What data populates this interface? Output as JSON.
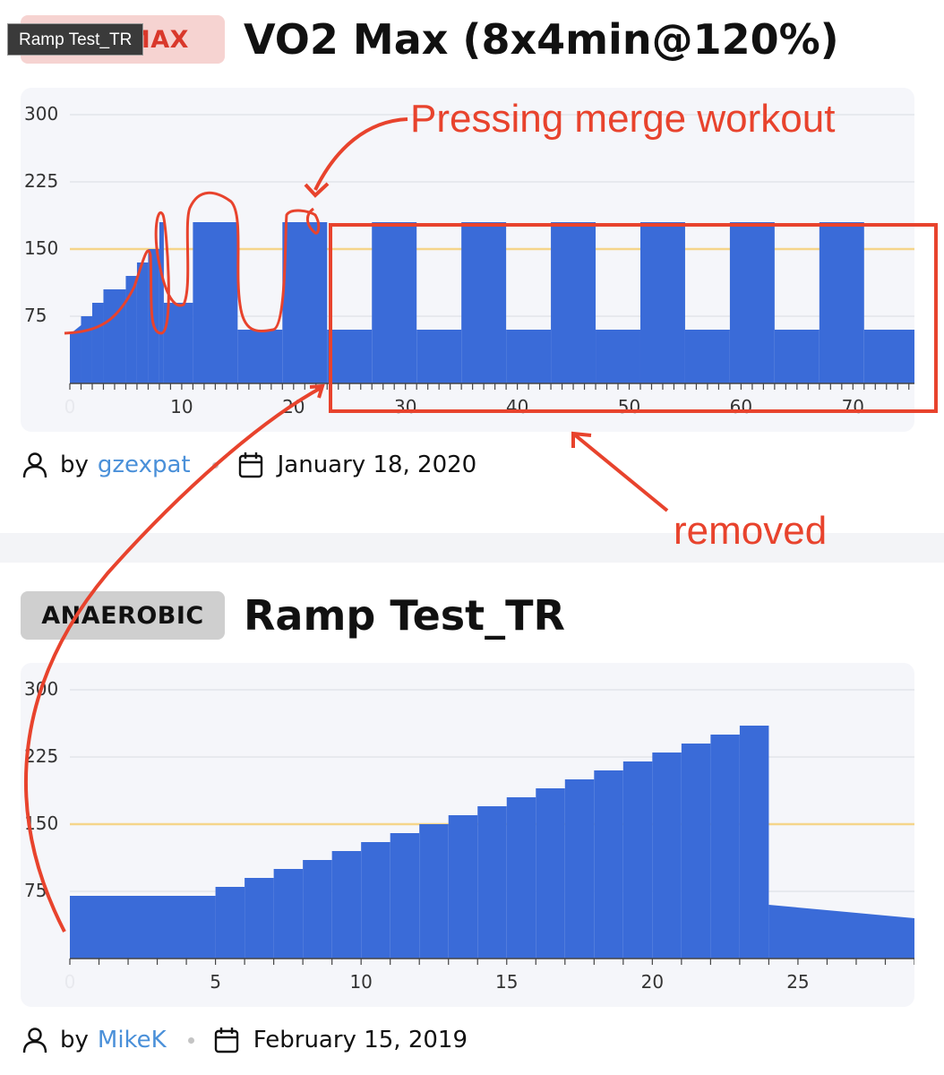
{
  "tooltip": {
    "text": "Ramp Test_TR"
  },
  "workouts": [
    {
      "badge": "MAX",
      "title": "VO2 Max (8x4min@120%)",
      "by_label": "by",
      "author": "gzexpat",
      "date": "January 18, 2020",
      "chart_data": {
        "type": "area",
        "x_ticks": [
          "0",
          "10",
          "20",
          "30",
          "40",
          "50",
          "60",
          "70"
        ],
        "y_ticks": [
          "75",
          "150",
          "225",
          "300"
        ],
        "xlim": [
          0,
          75.5
        ],
        "ylim": [
          0,
          310
        ],
        "reference_line": 150,
        "step_segments": [
          [
            0,
            1,
            55,
            65
          ],
          [
            1,
            2,
            75,
            75
          ],
          [
            2,
            3,
            90,
            90
          ],
          [
            3,
            5,
            105,
            105
          ],
          [
            5,
            6,
            120,
            120
          ],
          [
            6,
            7,
            135,
            135
          ],
          [
            7,
            8,
            150,
            150
          ],
          [
            8,
            8.4,
            180,
            180
          ],
          [
            8.4,
            11,
            90,
            90
          ],
          [
            11,
            15,
            180,
            180
          ],
          [
            15,
            19,
            60,
            60
          ],
          [
            19,
            23,
            180,
            180
          ],
          [
            23,
            27,
            60,
            60
          ],
          [
            27,
            31,
            180,
            180
          ],
          [
            31,
            35,
            60,
            60
          ],
          [
            35,
            39,
            180,
            180
          ],
          [
            39,
            43,
            60,
            60
          ],
          [
            43,
            47,
            180,
            180
          ],
          [
            47,
            51,
            60,
            60
          ],
          [
            51,
            55,
            180,
            180
          ],
          [
            55,
            59,
            60,
            60
          ],
          [
            59,
            63,
            180,
            180
          ],
          [
            63,
            67,
            60,
            60
          ],
          [
            67,
            71,
            180,
            180
          ],
          [
            71,
            75.5,
            60,
            60
          ]
        ],
        "colors": {
          "fill": "#3a6bd8",
          "reference": "#f5d58a",
          "grid": "#dfe1e8"
        }
      }
    },
    {
      "badge": "ANAEROBIC",
      "title": "Ramp Test_TR",
      "by_label": "by",
      "author": "MikeK",
      "date": "February 15, 2019",
      "chart_data": {
        "type": "area",
        "x_ticks": [
          "0",
          "5",
          "10",
          "15",
          "20",
          "25"
        ],
        "y_ticks": [
          "75",
          "150",
          "225",
          "300"
        ],
        "xlim": [
          0,
          29
        ],
        "ylim": [
          0,
          310
        ],
        "reference_line": 150,
        "step_segments": [
          [
            0,
            5,
            70,
            70
          ],
          [
            5,
            6,
            80,
            80
          ],
          [
            6,
            7,
            90,
            90
          ],
          [
            7,
            8,
            100,
            100
          ],
          [
            8,
            9,
            110,
            110
          ],
          [
            9,
            10,
            120,
            120
          ],
          [
            10,
            11,
            130,
            130
          ],
          [
            11,
            12,
            140,
            140
          ],
          [
            12,
            13,
            150,
            150
          ],
          [
            13,
            14,
            160,
            160
          ],
          [
            14,
            15,
            170,
            170
          ],
          [
            15,
            16,
            180,
            180
          ],
          [
            16,
            17,
            190,
            190
          ],
          [
            17,
            18,
            200,
            200
          ],
          [
            18,
            19,
            210,
            210
          ],
          [
            19,
            20,
            220,
            220
          ],
          [
            20,
            21,
            230,
            230
          ],
          [
            21,
            22,
            240,
            240
          ],
          [
            22,
            23,
            250,
            250
          ],
          [
            23,
            24,
            260,
            260
          ],
          [
            24,
            29,
            60,
            45
          ]
        ],
        "colors": {
          "fill": "#3a6bd8",
          "reference": "#f5d58a",
          "grid": "#dfe1e8"
        }
      }
    }
  ],
  "annotations": {
    "merge_label": "Pressing merge workout",
    "removed_label": "removed",
    "color": "#e8432d"
  }
}
